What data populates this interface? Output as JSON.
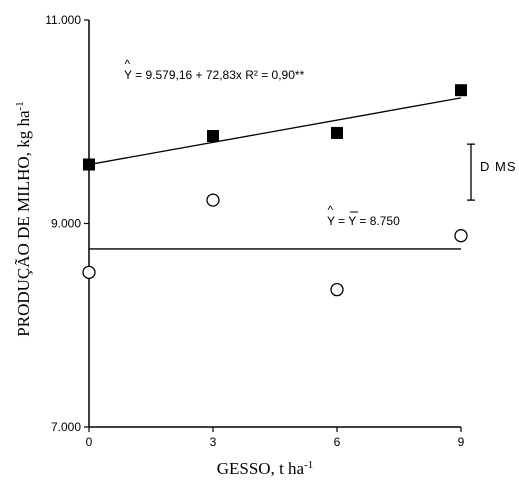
{
  "chart_data": {
    "type": "scatter",
    "xlabel": "GESSO, t ha",
    "xlabel_sup": "-1",
    "ylabel": "PRODUÇÃO DE MILHO, kg ha",
    "ylabel_sup": "-1",
    "xlim": [
      0,
      9
    ],
    "ylim": [
      7000,
      11000
    ],
    "x_ticks": [
      0,
      3,
      6,
      9
    ],
    "x_tick_labels": [
      "0",
      "3",
      "6",
      "9"
    ],
    "y_ticks": [
      7000,
      9000,
      11000
    ],
    "y_tick_labels": [
      "7.000",
      "9.000",
      "11.000"
    ],
    "grid": false,
    "series": [
      {
        "marker": "filled-square",
        "x": [
          0,
          3,
          6,
          9
        ],
        "y": [
          9580,
          9860,
          9890,
          10310
        ],
        "fit": {
          "intercept": 9579.16,
          "slope": 72.83
        },
        "equation": "Y = 9.579,16 + 72,83x  R² = 0,90**"
      },
      {
        "marker": "open-circle",
        "x": [
          0,
          3,
          6,
          9
        ],
        "y": [
          8520,
          9230,
          8350,
          8880
        ],
        "fit": {
          "intercept": 8750,
          "slope": 0
        },
        "equation": "Y = Y = 8.750"
      }
    ],
    "annotation": {
      "label": "D MS",
      "y_top": 9780,
      "y_bottom": 9230
    }
  }
}
